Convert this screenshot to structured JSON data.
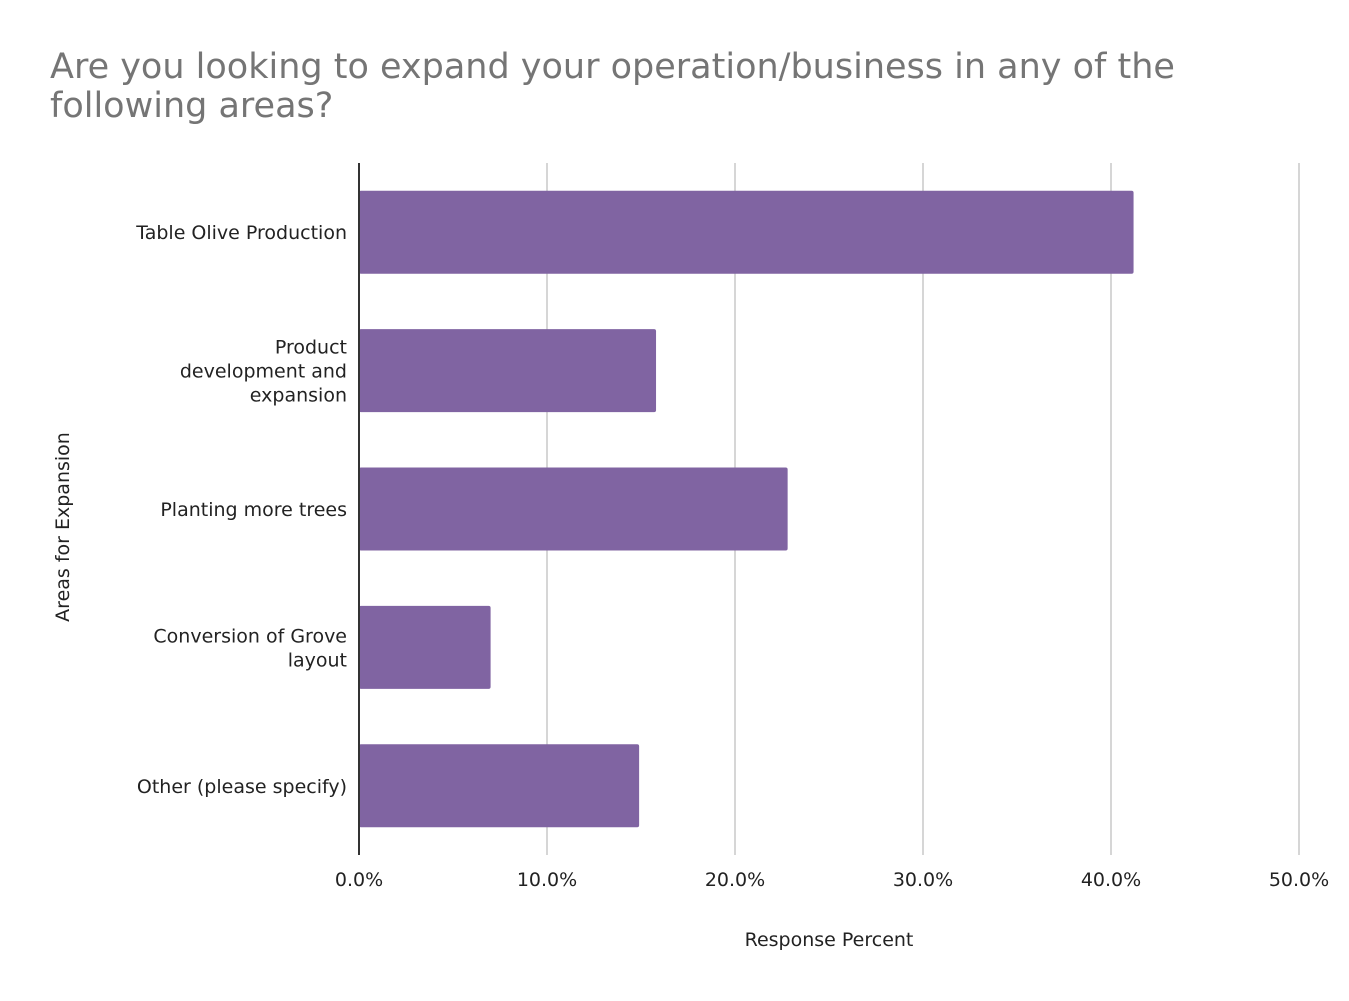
{
  "chart_data": {
    "type": "bar",
    "orientation": "horizontal",
    "title": "Are you looking to expand your operation/business in any of the following areas?",
    "xlabel": "Response Percent",
    "ylabel": "Areas for Expansion",
    "categories": [
      [
        "Table Olive Production"
      ],
      [
        "Product",
        "development and",
        "expansion"
      ],
      [
        "Planting more trees"
      ],
      [
        "Conversion of Grove",
        "layout"
      ],
      [
        "Other (please specify)"
      ]
    ],
    "values": [
      41.2,
      15.8,
      22.8,
      7.0,
      14.9
    ],
    "xlim": [
      0,
      50
    ],
    "xticks": [
      0,
      10,
      20,
      30,
      40,
      50
    ],
    "xtick_labels": [
      "0.0%",
      "10.0%",
      "20.0%",
      "30.0%",
      "40.0%",
      "50.0%"
    ],
    "grid": "vertical",
    "legend": "none",
    "bar_color": "#8064a2",
    "grid_color": "#c8c8c8",
    "axis_color": "#333333"
  }
}
